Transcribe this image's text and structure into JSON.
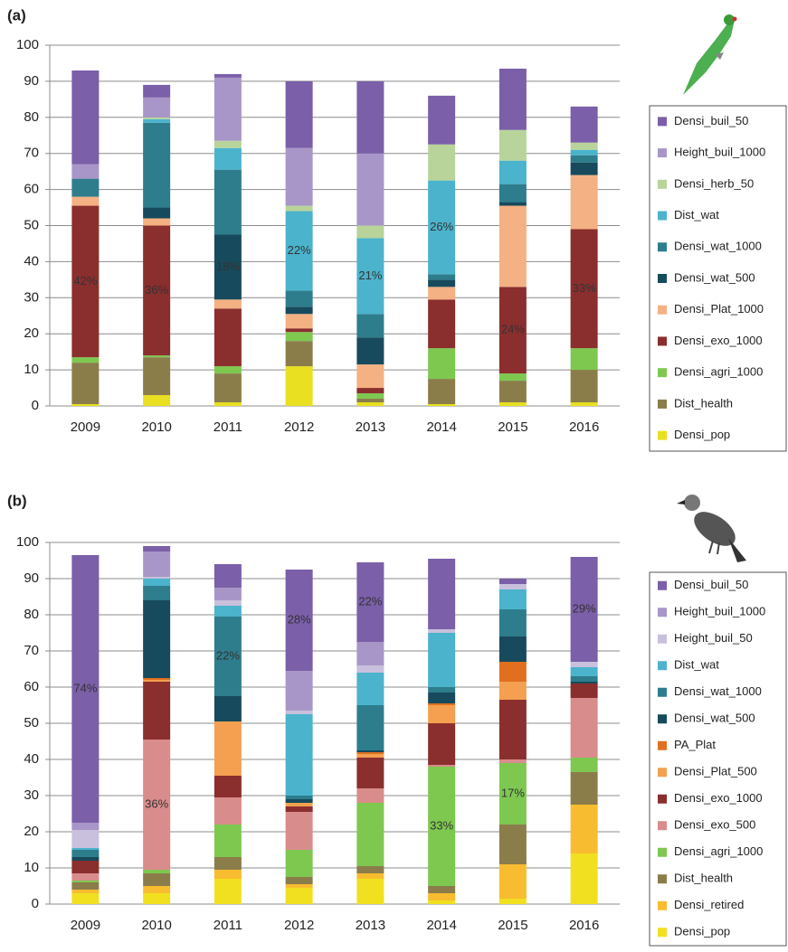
{
  "chart_data": [
    {
      "type": "bar",
      "stacked": true,
      "title": "(a)",
      "categories": [
        "2009",
        "2010",
        "2011",
        "2012",
        "2013",
        "2014",
        "2015",
        "2016"
      ],
      "ylim": [
        0,
        100
      ],
      "yticks": [
        0,
        10,
        20,
        30,
        40,
        50,
        60,
        70,
        80,
        90,
        100
      ],
      "grid": true,
      "series": [
        {
          "name": "Densi_pop",
          "color": "#e8e020",
          "values": [
            0.5,
            3,
            1,
            11,
            1,
            0.5,
            1,
            1
          ]
        },
        {
          "name": "Dist_health",
          "color": "#8b7d4a",
          "values": [
            11.5,
            10.5,
            8,
            7,
            1,
            7,
            6,
            9
          ]
        },
        {
          "name": "Densi_agri_1000",
          "color": "#7ec850",
          "values": [
            1.5,
            0.5,
            2,
            2.5,
            1.5,
            8.5,
            2,
            6
          ]
        },
        {
          "name": "Densi_exo_1000",
          "color": "#8b2e2e",
          "values": [
            42,
            36,
            16,
            1,
            1.5,
            13.5,
            24,
            33
          ],
          "value_labels": [
            "42%",
            "36%",
            null,
            null,
            null,
            null,
            "24%",
            "33%"
          ]
        },
        {
          "name": "Densi_Plat_1000",
          "color": "#f4b183",
          "values": [
            2.5,
            2,
            2.5,
            4,
            6.5,
            3.5,
            22.5,
            15
          ]
        },
        {
          "name": "Densi_wat_500",
          "color": "#174a5c",
          "values": [
            0,
            3,
            18,
            2,
            7.5,
            2,
            1,
            3.5
          ],
          "value_labels": [
            null,
            null,
            "18%",
            null,
            null,
            null,
            null,
            null
          ]
        },
        {
          "name": "Densi_wat_1000",
          "color": "#2e7d8c",
          "values": [
            5,
            23.5,
            18,
            4.5,
            6.5,
            1.5,
            5,
            2
          ]
        },
        {
          "name": "Dist_wat",
          "color": "#4bb3cc",
          "values": [
            0,
            1,
            6,
            22,
            21,
            26,
            6.5,
            1.5
          ],
          "value_labels": [
            null,
            null,
            null,
            "22%",
            "21%",
            "26%",
            null,
            null
          ]
        },
        {
          "name": "Densi_herb_50",
          "color": "#b8d49a",
          "values": [
            0,
            0.5,
            2,
            1.5,
            3.5,
            10,
            8.5,
            2
          ]
        },
        {
          "name": "Height_buil_1000",
          "color": "#a896c8",
          "values": [
            4,
            5.5,
            17.5,
            16,
            20,
            0,
            0,
            0
          ]
        },
        {
          "name": "Densi_buil_50",
          "color": "#7b5fa8",
          "values": [
            26,
            3.5,
            1,
            18.5,
            20,
            13.5,
            17,
            10
          ]
        }
      ]
    },
    {
      "type": "bar",
      "stacked": true,
      "title": "(b)",
      "categories": [
        "2009",
        "2010",
        "2011",
        "2012",
        "2013",
        "2014",
        "2015",
        "2016"
      ],
      "ylim": [
        0,
        100
      ],
      "yticks": [
        0,
        10,
        20,
        30,
        40,
        50,
        60,
        70,
        80,
        90,
        100
      ],
      "grid": true,
      "series": [
        {
          "name": "Densi_pop",
          "color": "#f0e020",
          "values": [
            3,
            3,
            7,
            4.5,
            7,
            1,
            1.5,
            14
          ]
        },
        {
          "name": "Densi_retired",
          "color": "#f8bc30",
          "values": [
            1,
            2,
            2.5,
            1,
            1.5,
            2,
            9.5,
            13.5
          ]
        },
        {
          "name": "Dist_health",
          "color": "#8b7d4a",
          "values": [
            2,
            3.5,
            3.5,
            2,
            2,
            2,
            11,
            9
          ]
        },
        {
          "name": "Densi_agri_1000",
          "color": "#7ec850",
          "values": [
            0.5,
            1,
            9,
            7.5,
            17.5,
            33,
            17,
            4
          ],
          "value_labels": [
            null,
            null,
            null,
            null,
            null,
            "33%",
            "17%",
            null
          ]
        },
        {
          "name": "Densi_exo_500",
          "color": "#d98c8c",
          "values": [
            2,
            36,
            7.5,
            10.5,
            4,
            0.5,
            1,
            16.5
          ],
          "value_labels": [
            null,
            "36%",
            null,
            null,
            null,
            null,
            null,
            null
          ]
        },
        {
          "name": "Densi_exo_1000",
          "color": "#8b2e2e",
          "values": [
            3.5,
            16,
            6,
            1.5,
            8.5,
            11.5,
            16.5,
            4
          ]
        },
        {
          "name": "Densi_Plat_500",
          "color": "#f4a050",
          "values": [
            0,
            0.5,
            15,
            1,
            1,
            5,
            5,
            0
          ]
        },
        {
          "name": "PA_Plat",
          "color": "#e07020",
          "values": [
            0,
            0.5,
            0,
            0,
            0.5,
            0.5,
            5.5,
            0
          ]
        },
        {
          "name": "Densi_wat_500",
          "color": "#174a5c",
          "values": [
            1,
            21.5,
            7,
            1,
            0.5,
            3,
            7,
            0.5
          ]
        },
        {
          "name": "Densi_wat_1000",
          "color": "#2e7d8c",
          "values": [
            2,
            4,
            22,
            1,
            12.5,
            1.5,
            7.5,
            1.5
          ],
          "value_labels": [
            null,
            null,
            "22%",
            null,
            null,
            null,
            null,
            null
          ]
        },
        {
          "name": "Dist_wat",
          "color": "#4bb3cc",
          "values": [
            0.5,
            2,
            3,
            22.5,
            9,
            15,
            5.5,
            2.5
          ]
        },
        {
          "name": "Height_buil_50",
          "color": "#c8c0dc",
          "values": [
            5,
            0.5,
            1.5,
            1,
            2,
            1,
            1.5,
            1.5
          ]
        },
        {
          "name": "Height_buil_1000",
          "color": "#a896c8",
          "values": [
            2,
            7,
            3.5,
            11,
            6.5,
            0,
            0,
            0
          ]
        },
        {
          "name": "Densi_buil_50",
          "color": "#7b5fa8",
          "values": [
            74,
            1.5,
            6.5,
            28,
            22,
            19.5,
            1.5,
            29
          ],
          "value_labels": [
            "74%",
            null,
            null,
            "28%",
            "22%",
            null,
            null,
            "29%"
          ]
        }
      ]
    }
  ]
}
